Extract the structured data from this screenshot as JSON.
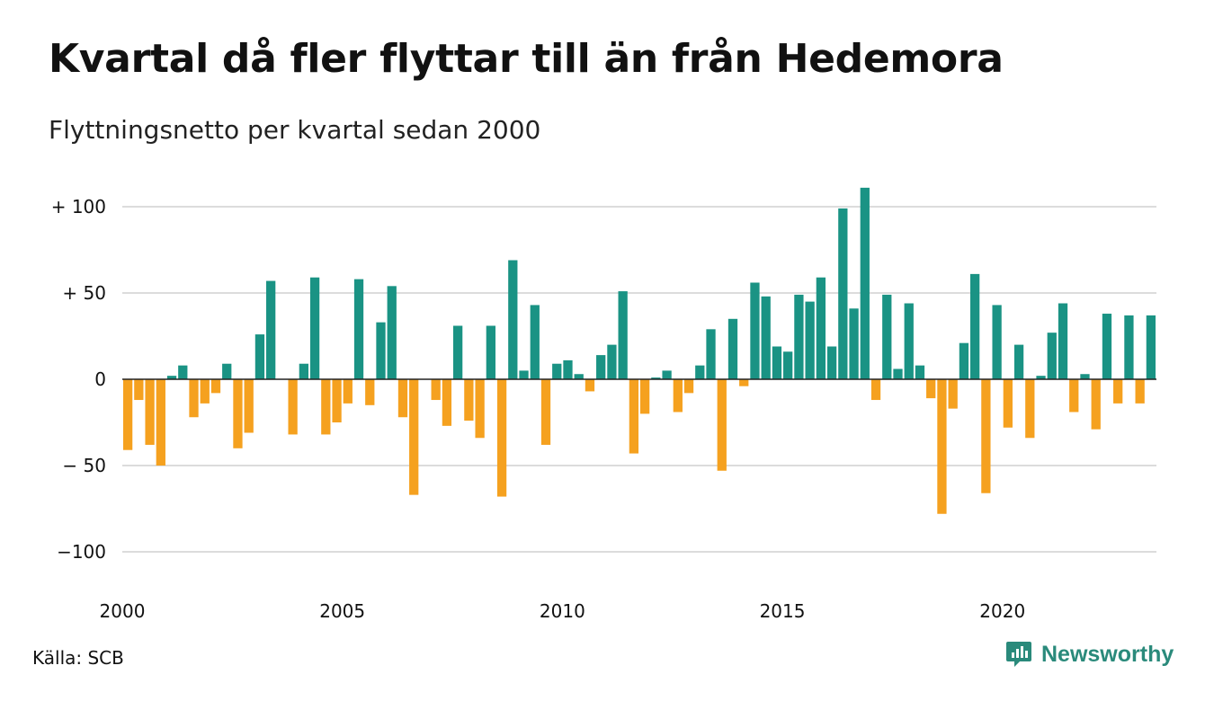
{
  "title": "Kvartal då fler flyttar till än från Hedemora",
  "subtitle": "Flyttningsnetto per kvartal sedan 2000",
  "source": "Källa: SCB",
  "brand": {
    "name": "Newsworthy",
    "icon": "newsworthy-logo-icon"
  },
  "colors": {
    "positive": "#1a9384",
    "negative": "#f5a11f",
    "grid": "#dcdcdc",
    "text": "#111111"
  },
  "chart_data": {
    "type": "bar",
    "x_start": 2000,
    "bars_per_year": 4,
    "x_ticks": [
      2000,
      2005,
      2010,
      2015,
      2020
    ],
    "x_tick_labels": [
      "2000",
      "2005",
      "2010",
      "2015",
      "2020"
    ],
    "y_ticks": [
      100,
      50,
      0,
      -50,
      -100
    ],
    "y_tick_labels": [
      "+ 100",
      "+  50",
      "0",
      "− 50",
      "−100"
    ],
    "ylim": [
      -100,
      110
    ],
    "grid": true,
    "values": [
      -41,
      -12,
      -38,
      -50,
      2,
      8,
      -22,
      -14,
      -8,
      9,
      -40,
      -31,
      26,
      57,
      0,
      -32,
      9,
      59,
      -32,
      -25,
      -14,
      58,
      -15,
      33,
      54,
      -22,
      -67,
      0,
      -12,
      -27,
      31,
      -24,
      -34,
      31,
      -68,
      69,
      5,
      43,
      -38,
      9,
      11,
      3,
      -7,
      14,
      20,
      51,
      -43,
      -20,
      1,
      5,
      -19,
      -8,
      8,
      29,
      -53,
      35,
      -4,
      56,
      48,
      19,
      16,
      49,
      45,
      59,
      19,
      99,
      41,
      111,
      -12,
      49,
      6,
      44,
      8,
      -11,
      -78,
      -17,
      21,
      61,
      -66,
      43,
      -28,
      20,
      -34,
      2,
      27,
      44,
      -19,
      3,
      -29,
      38,
      -14,
      37,
      -14,
      37
    ]
  }
}
